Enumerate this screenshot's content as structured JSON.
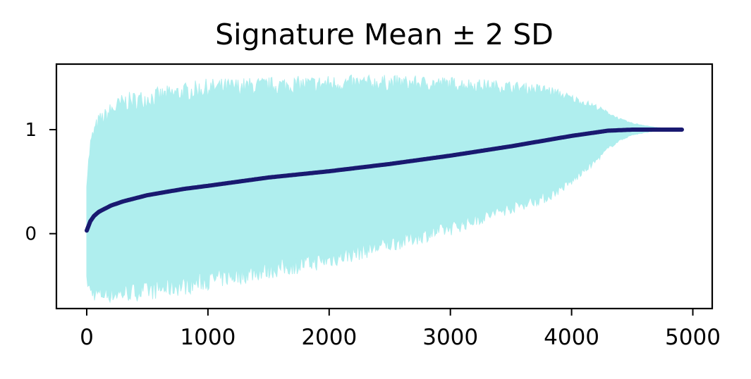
{
  "chart_data": {
    "type": "line",
    "title": "Signature Mean ± 2 SD",
    "xlabel": "",
    "ylabel": "",
    "xlim": [
      -250,
      5160
    ],
    "ylim": [
      -0.72,
      1.63
    ],
    "x_ticks": [
      0,
      1000,
      2000,
      3000,
      4000,
      5000
    ],
    "x_tick_labels": [
      "0",
      "1000",
      "2000",
      "3000",
      "4000",
      "5000"
    ],
    "y_ticks": [
      0,
      1
    ],
    "y_tick_labels": [
      "0",
      "1"
    ],
    "grid": false,
    "series": [
      {
        "name": "mean",
        "color": "#191970",
        "x": [
          0,
          30,
          60,
          100,
          150,
          200,
          300,
          500,
          800,
          1000,
          1500,
          2000,
          2500,
          3000,
          3500,
          4000,
          4300,
          4500,
          4910
        ],
        "values": [
          0.03,
          0.12,
          0.17,
          0.21,
          0.24,
          0.27,
          0.31,
          0.37,
          0.43,
          0.46,
          0.54,
          0.6,
          0.67,
          0.75,
          0.84,
          0.94,
          0.99,
          1.0,
          1.0
        ]
      }
    ],
    "band": {
      "name": "± 2 SD",
      "color": "#afeeee",
      "x": [
        0,
        30,
        60,
        100,
        150,
        200,
        300,
        500,
        800,
        1000,
        1500,
        2000,
        2500,
        3000,
        3500,
        3800,
        4000,
        4200,
        4300,
        4400,
        4500,
        4700,
        4910
      ],
      "upper": [
        0.5,
        0.85,
        0.98,
        1.08,
        1.12,
        1.18,
        1.26,
        1.3,
        1.36,
        1.4,
        1.42,
        1.44,
        1.45,
        1.44,
        1.41,
        1.38,
        1.3,
        1.22,
        1.16,
        1.1,
        1.06,
        1.02,
        1.0
      ],
      "lower": [
        -0.45,
        -0.55,
        -0.57,
        -0.58,
        -0.58,
        -0.58,
        -0.57,
        -0.55,
        -0.5,
        -0.45,
        -0.35,
        -0.25,
        -0.1,
        0.05,
        0.25,
        0.35,
        0.5,
        0.7,
        0.82,
        0.9,
        0.95,
        0.99,
        1.0
      ]
    }
  }
}
